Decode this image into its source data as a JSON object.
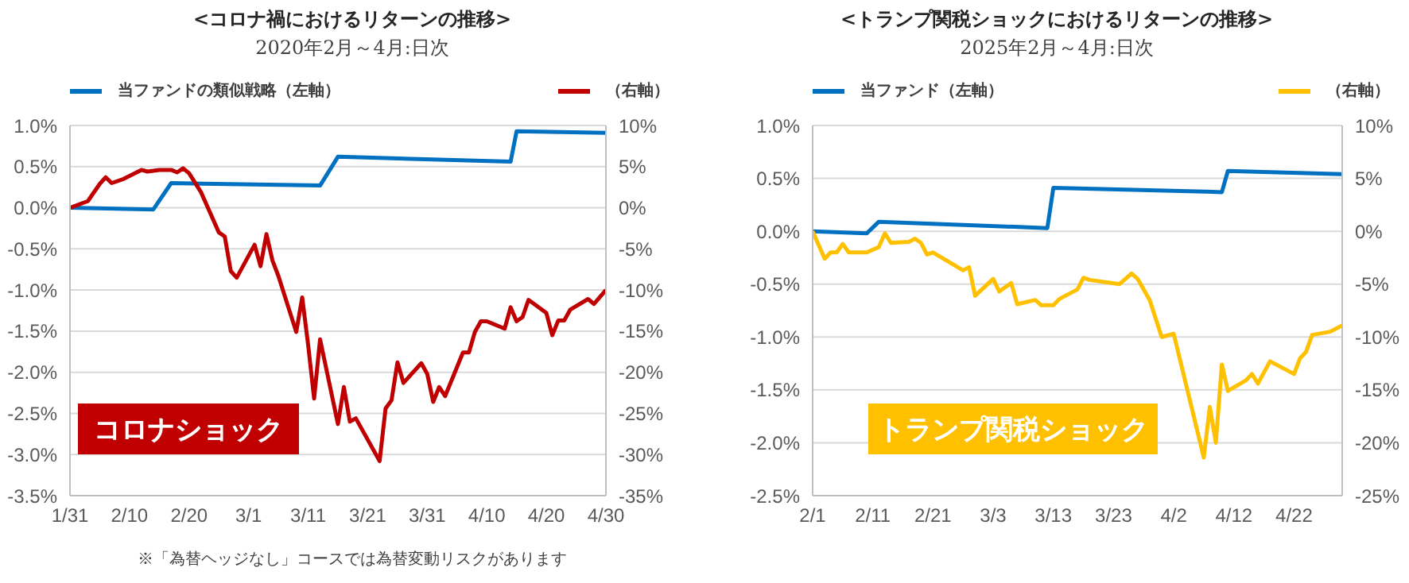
{
  "chart_data": [
    {
      "type": "line",
      "title": "<コロナ禍におけるリターンの推移>",
      "subtitle": "2020年2月～4月:日次",
      "legend": "top",
      "grid": "y",
      "marker": "none",
      "line_style": "solid",
      "xlim": [
        "2020-01-31",
        "2020-04-30"
      ],
      "xticks": [
        {
          "value": "2020-01-31",
          "label": "1/31"
        },
        {
          "value": "2020-02-10",
          "label": "2/10"
        },
        {
          "value": "2020-02-20",
          "label": "2/20"
        },
        {
          "value": "2020-03-01",
          "label": "3/1"
        },
        {
          "value": "2020-03-11",
          "label": "3/11"
        },
        {
          "value": "2020-03-21",
          "label": "3/21"
        },
        {
          "value": "2020-03-31",
          "label": "3/31"
        },
        {
          "value": "2020-04-10",
          "label": "4/10"
        },
        {
          "value": "2020-04-20",
          "label": "4/20"
        },
        {
          "value": "2020-04-30",
          "label": "4/30"
        }
      ],
      "ylim": [
        -3.5,
        1.0
      ],
      "yticks": [
        {
          "value": 1.0,
          "label": "1.0%"
        },
        {
          "value": 0.5,
          "label": "0.5%"
        },
        {
          "value": 0,
          "label": "0.0%"
        },
        {
          "value": -0.5,
          "label": "-0.5%"
        },
        {
          "value": -1.0,
          "label": "-1.0%"
        },
        {
          "value": -1.5,
          "label": "-1.5%"
        },
        {
          "value": -2.0,
          "label": "-2.0%"
        },
        {
          "value": -2.5,
          "label": "-2.5%"
        },
        {
          "value": -3.0,
          "label": "-3.0%"
        },
        {
          "value": -3.5,
          "label": "-3.5%"
        }
      ],
      "y2lim": [
        -35,
        10
      ],
      "y2ticks": [
        {
          "value": 10,
          "label": "10%"
        },
        {
          "value": 5,
          "label": "5%"
        },
        {
          "value": 0,
          "label": "0%"
        },
        {
          "value": -5,
          "label": "-5%"
        },
        {
          "value": -10,
          "label": "-10%"
        },
        {
          "value": -15,
          "label": "-15%"
        },
        {
          "value": -20,
          "label": "-20%"
        },
        {
          "value": -25,
          "label": "-25%"
        },
        {
          "value": -30,
          "label": "-30%"
        },
        {
          "value": -35,
          "label": "-35%"
        }
      ],
      "annotations": [
        "コロナショック",
        "※「為替ヘッジなし」コースでは為替変動リスクがあります"
      ],
      "series": [
        {
          "name": "当ファンドの類似戦略（左軸）",
          "color": "#0070c0",
          "x": [
            "2020-01-31",
            "2020-02-14",
            "2020-02-17",
            "2020-03-13",
            "2020-03-16",
            "2020-04-14",
            "2020-04-15",
            "2020-04-30"
          ],
          "values": [
            0,
            -0.02,
            0.3,
            0.27,
            0.62,
            0.56,
            0.93,
            0.91
          ]
        },
        {
          "name": "（右軸）",
          "color": "#c00000",
          "axis": "y2",
          "x": [
            "2020-01-31",
            "2020-02-03",
            "2020-02-05",
            "2020-02-06",
            "2020-02-07",
            "2020-02-09",
            "2020-02-12",
            "2020-02-13",
            "2020-02-15",
            "2020-02-17",
            "2020-02-18",
            "2020-02-19",
            "2020-02-20",
            "2020-02-22",
            "2020-02-25",
            "2020-02-26",
            "2020-02-27",
            "2020-02-28",
            "2020-03-02",
            "2020-03-03",
            "2020-03-04",
            "2020-03-05",
            "2020-03-06",
            "2020-03-09",
            "2020-03-10",
            "2020-03-11",
            "2020-03-12",
            "2020-03-13",
            "2020-03-16",
            "2020-03-17",
            "2020-03-18",
            "2020-03-19",
            "2020-03-23",
            "2020-03-24",
            "2020-03-25",
            "2020-03-26",
            "2020-03-27",
            "2020-03-30",
            "2020-03-31",
            "2020-04-01",
            "2020-04-02",
            "2020-04-03",
            "2020-04-06",
            "2020-04-07",
            "2020-04-08",
            "2020-04-09",
            "2020-04-10",
            "2020-04-13",
            "2020-04-14",
            "2020-04-15",
            "2020-04-16",
            "2020-04-17",
            "2020-04-20",
            "2020-04-21",
            "2020-04-22",
            "2020-04-23",
            "2020-04-24",
            "2020-04-27",
            "2020-04-28",
            "2020-04-30"
          ],
          "values": [
            0,
            0.8,
            2.9,
            3.7,
            3.0,
            3.5,
            4.6,
            4.4,
            4.6,
            4.6,
            4.3,
            4.8,
            4.2,
            1.9,
            -3.0,
            -3.5,
            -7.7,
            -8.5,
            -4.5,
            -7.1,
            -3.2,
            -6.4,
            -8.3,
            -15.1,
            -10.9,
            -16.7,
            -23.2,
            -16.0,
            -26.3,
            -21.8,
            -26.0,
            -25.6,
            -30.8,
            -24.4,
            -23.4,
            -18.8,
            -21.3,
            -18.9,
            -20.2,
            -23.6,
            -21.8,
            -22.9,
            -17.6,
            -17.6,
            -15.1,
            -13.8,
            -13.8,
            -14.7,
            -12.1,
            -13.8,
            -13.3,
            -11.2,
            -12.8,
            -15.5,
            -13.7,
            -13.7,
            -12.4,
            -11.1,
            -11.7,
            -10.0
          ]
        }
      ]
    },
    {
      "type": "line",
      "title": "<トランプ関税ショックにおけるリターンの推移>",
      "subtitle": "2025年2月～4月:日次",
      "legend": "top",
      "grid": "y",
      "marker": "none",
      "line_style": "solid",
      "xlim": [
        "2025-02-01",
        "2025-04-30"
      ],
      "xticks": [
        {
          "value": "2025-02-01",
          "label": "2/1"
        },
        {
          "value": "2025-02-11",
          "label": "2/11"
        },
        {
          "value": "2025-02-21",
          "label": "2/21"
        },
        {
          "value": "2025-03-03",
          "label": "3/3"
        },
        {
          "value": "2025-03-13",
          "label": "3/13"
        },
        {
          "value": "2025-03-23",
          "label": "3/23"
        },
        {
          "value": "2025-04-02",
          "label": "4/2"
        },
        {
          "value": "2025-04-12",
          "label": "4/12"
        },
        {
          "value": "2025-04-22",
          "label": "4/22"
        }
      ],
      "ylim": [
        -2.5,
        1.0
      ],
      "yticks": [
        {
          "value": 1.0,
          "label": "1.0%"
        },
        {
          "value": 0.5,
          "label": "0.5%"
        },
        {
          "value": 0,
          "label": "0.0%"
        },
        {
          "value": -0.5,
          "label": "-0.5%"
        },
        {
          "value": -1.0,
          "label": "-1.0%"
        },
        {
          "value": -1.5,
          "label": "-1.5%"
        },
        {
          "value": -2.0,
          "label": "-2.0%"
        },
        {
          "value": -2.5,
          "label": "-2.5%"
        }
      ],
      "y2lim": [
        -25,
        10
      ],
      "y2ticks": [
        {
          "value": 10,
          "label": "10%"
        },
        {
          "value": 5,
          "label": "5%"
        },
        {
          "value": 0,
          "label": "0%"
        },
        {
          "value": -5,
          "label": "-5%"
        },
        {
          "value": -10,
          "label": "-10%"
        },
        {
          "value": -15,
          "label": "-15%"
        },
        {
          "value": -20,
          "label": "-20%"
        },
        {
          "value": -25,
          "label": "-25%"
        }
      ],
      "annotations": [
        "トランプ関税ショック"
      ],
      "series": [
        {
          "name": "当ファンド（左軸）",
          "color": "#0070c0",
          "x": [
            "2025-02-01",
            "2025-02-10",
            "2025-02-12",
            "2025-03-12",
            "2025-03-13",
            "2025-04-10",
            "2025-04-11",
            "2025-04-30"
          ],
          "values": [
            0,
            -0.02,
            0.09,
            0.03,
            0.41,
            0.37,
            0.57,
            0.54
          ]
        },
        {
          "name": "（右軸）",
          "color": "#ffc000",
          "axis": "y2",
          "x": [
            "2025-02-01",
            "2025-02-03",
            "2025-02-04",
            "2025-02-05",
            "2025-02-06",
            "2025-02-07",
            "2025-02-10",
            "2025-02-12",
            "2025-02-13",
            "2025-02-14",
            "2025-02-17",
            "2025-02-18",
            "2025-02-19",
            "2025-02-20",
            "2025-02-21",
            "2025-02-26",
            "2025-02-27",
            "2025-02-28",
            "2025-03-03",
            "2025-03-04",
            "2025-03-06",
            "2025-03-07",
            "2025-03-10",
            "2025-03-11",
            "2025-03-13",
            "2025-03-14",
            "2025-03-17",
            "2025-03-18",
            "2025-03-19",
            "2025-03-24",
            "2025-03-26",
            "2025-03-27",
            "2025-03-29",
            "2025-03-31",
            "2025-04-02",
            "2025-04-07",
            "2025-04-08",
            "2025-04-09",
            "2025-04-10",
            "2025-04-11",
            "2025-04-14",
            "2025-04-15",
            "2025-04-16",
            "2025-04-18",
            "2025-04-22",
            "2025-04-23",
            "2025-04-24",
            "2025-04-25",
            "2025-04-28",
            "2025-04-30"
          ],
          "values": [
            0,
            -2.6,
            -2.0,
            -2.0,
            -1.2,
            -2.0,
            -2.0,
            -1.5,
            -0.2,
            -1.1,
            -1.0,
            -0.7,
            -1.1,
            -2.2,
            -2.0,
            -3.7,
            -3.4,
            -6.1,
            -4.5,
            -5.7,
            -4.9,
            -6.9,
            -6.5,
            -7.0,
            -7.0,
            -6.4,
            -5.5,
            -4.4,
            -4.6,
            -5.0,
            -4.0,
            -4.5,
            -6.5,
            -10.0,
            -9.7,
            -21.4,
            -16.6,
            -20.0,
            -12.6,
            -15.1,
            -14.1,
            -13.5,
            -14.4,
            -12.3,
            -13.5,
            -12.0,
            -11.4,
            -9.8,
            -9.5,
            -8.9
          ]
        }
      ]
    }
  ]
}
